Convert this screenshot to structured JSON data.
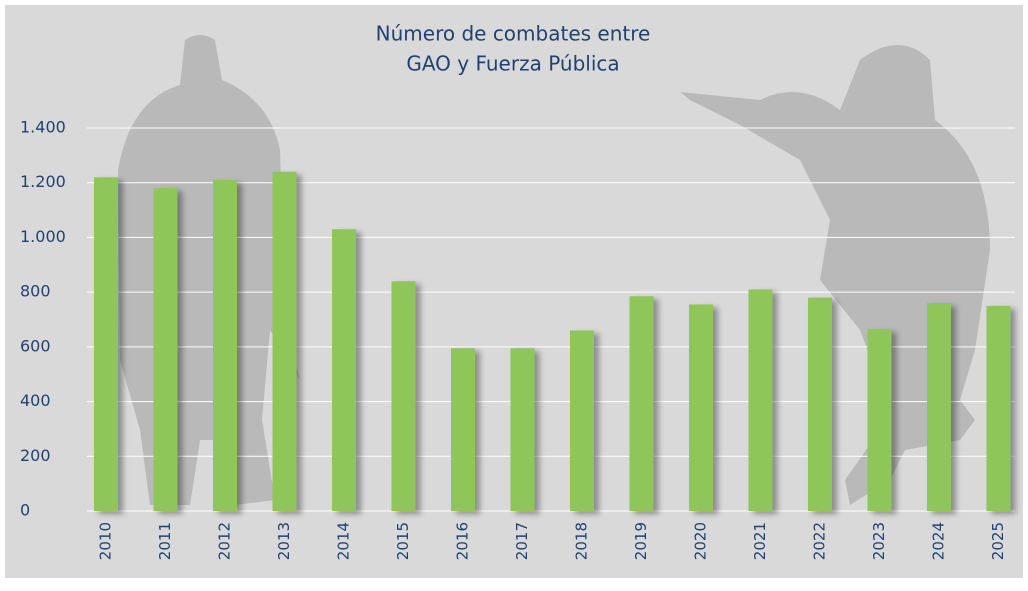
{
  "chart_data": {
    "type": "bar",
    "title_lines": [
      "Número de combates entre",
      "GAO y Fuerza Pública"
    ],
    "categories": [
      "2010",
      "2011",
      "2012",
      "2013",
      "2014",
      "2015",
      "2016",
      "2017",
      "2018",
      "2019",
      "2020",
      "2021",
      "2022",
      "2023",
      "2024",
      "2025"
    ],
    "values": [
      1220,
      1180,
      1210,
      1240,
      1030,
      840,
      595,
      595,
      660,
      785,
      755,
      810,
      780,
      665,
      760,
      750
    ],
    "color": "#8fc65a",
    "ylim": [
      0,
      1400
    ],
    "yticks": [
      0,
      200,
      400,
      600,
      800,
      {
        "value": 1000,
        "label": "1.000"
      },
      {
        "value": 1200,
        "label": "1.200"
      },
      {
        "value": 1400,
        "label": "1.400"
      }
    ],
    "grid": true
  }
}
